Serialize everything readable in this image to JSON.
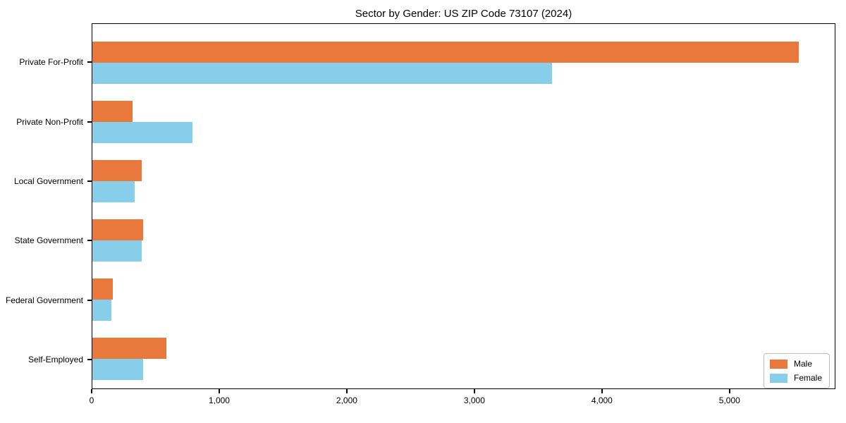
{
  "title": "Sector by Gender: US ZIP Code 73107 (2024)",
  "chart_data": {
    "type": "bar",
    "orientation": "horizontal",
    "title": "Sector by Gender: US ZIP Code 73107 (2024)",
    "xlabel": "",
    "ylabel": "",
    "categories": [
      "Private For-Profit",
      "Private Non-Profit",
      "Local Government",
      "State Government",
      "Federal Government",
      "Self-Employed"
    ],
    "series": [
      {
        "name": "Male",
        "color": "#e8783c",
        "values": [
          5550,
          315,
          390,
          400,
          160,
          580
        ]
      },
      {
        "name": "Female",
        "color": "#87ceeb",
        "values": [
          3610,
          785,
          330,
          390,
          150,
          400
        ]
      }
    ],
    "xlim": [
      0,
      5830
    ],
    "xticks": [
      0,
      1000,
      2000,
      3000,
      4000,
      5000
    ],
    "xtick_labels": [
      "0",
      "1,000",
      "2,000",
      "3,000",
      "4,000",
      "5,000"
    ],
    "grid": false,
    "legend_position": "lower right"
  },
  "legend": {
    "items": [
      {
        "label": "Male",
        "color": "#e8783c"
      },
      {
        "label": "Female",
        "color": "#87ceeb"
      }
    ]
  }
}
